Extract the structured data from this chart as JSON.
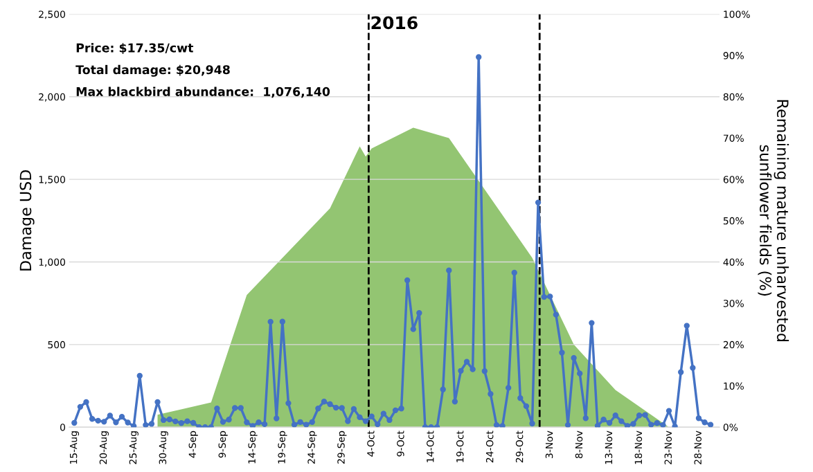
{
  "chart_data": {
    "type": "line",
    "title": "2016",
    "ylabel": "Damage USD",
    "y2label": "Remaining mature unharvested\nsunflower fields (%)",
    "annotations": [
      "Price: $17.35/cwt",
      "Total damage: $20,948",
      "Max blackbird abundance:  1,076,140"
    ],
    "x": [
      "2016-08-15",
      "2016-08-16",
      "2016-08-17",
      "2016-08-18",
      "2016-08-19",
      "2016-08-20",
      "2016-08-21",
      "2016-08-22",
      "2016-08-23",
      "2016-08-24",
      "2016-08-25",
      "2016-08-26",
      "2016-08-27",
      "2016-08-28",
      "2016-08-29",
      "2016-08-30",
      "2016-08-31",
      "2016-09-01",
      "2016-09-02",
      "2016-09-03",
      "2016-09-04",
      "2016-09-05",
      "2016-09-06",
      "2016-09-07",
      "2016-09-08",
      "2016-09-09",
      "2016-09-10",
      "2016-09-11",
      "2016-09-12",
      "2016-09-13",
      "2016-09-14",
      "2016-09-15",
      "2016-09-16",
      "2016-09-17",
      "2016-09-18",
      "2016-09-19",
      "2016-09-20",
      "2016-09-21",
      "2016-09-22",
      "2016-09-23",
      "2016-09-24",
      "2016-09-25",
      "2016-09-26",
      "2016-09-27",
      "2016-09-28",
      "2016-09-29",
      "2016-09-30",
      "2016-10-01",
      "2016-10-02",
      "2016-10-03",
      "2016-10-04",
      "2016-10-05",
      "2016-10-06",
      "2016-10-07",
      "2016-10-08",
      "2016-10-09",
      "2016-10-10",
      "2016-10-11",
      "2016-10-12",
      "2016-10-13",
      "2016-10-14",
      "2016-10-15",
      "2016-10-16",
      "2016-10-17",
      "2016-10-18",
      "2016-10-19",
      "2016-10-20",
      "2016-10-21",
      "2016-10-22",
      "2016-10-23",
      "2016-10-24",
      "2016-10-25",
      "2016-10-26",
      "2016-10-27",
      "2016-10-28",
      "2016-10-29",
      "2016-10-30",
      "2016-10-31",
      "2016-11-01",
      "2016-11-02",
      "2016-11-03",
      "2016-11-04",
      "2016-11-05",
      "2016-11-06",
      "2016-11-07",
      "2016-11-08",
      "2016-11-09",
      "2016-11-10",
      "2016-11-11",
      "2016-11-12",
      "2016-11-13",
      "2016-11-14",
      "2016-11-15",
      "2016-11-16",
      "2016-11-17",
      "2016-11-18",
      "2016-11-19",
      "2016-11-20",
      "2016-11-21",
      "2016-11-22",
      "2016-11-23",
      "2016-11-24",
      "2016-11-25",
      "2016-11-26",
      "2016-11-27",
      "2016-11-28",
      "2016-11-29",
      "2016-11-30"
    ],
    "series": [
      {
        "type": "area",
        "axis": "y2",
        "color": "#93c572",
        "x": [
          "2016-08-29",
          "2016-09-07",
          "2016-09-13",
          "2016-09-27",
          "2016-10-02",
          "2016-10-03",
          "2016-10-04",
          "2016-10-11",
          "2016-10-17",
          "2016-10-31",
          "2016-11-07",
          "2016-11-14",
          "2016-11-23"
        ],
        "values": [
          3,
          6,
          32,
          53,
          68,
          65.5,
          67.5,
          72.5,
          70,
          41,
          20,
          9,
          0
        ]
      },
      {
        "color": "#4472c4",
        "marker": "circle",
        "values": [
          26,
          123,
          152,
          50,
          39,
          33,
          70,
          29,
          63,
          28,
          6,
          311,
          13,
          20,
          152,
          43,
          47,
          35,
          25,
          36,
          26,
          0,
          0,
          0,
          113,
          32,
          46,
          116,
          116,
          29,
          7,
          29,
          18,
          638,
          53,
          639,
          145,
          15,
          31,
          15,
          31,
          113,
          155,
          139,
          118,
          116,
          36,
          110,
          60,
          36,
          65,
          17,
          82,
          43,
          102,
          113,
          889,
          593,
          691,
          0,
          0,
          0,
          228,
          949,
          155,
          341,
          396,
          350,
          2240,
          339,
          201,
          13,
          7,
          238,
          935,
          176,
          127,
          22,
          1360,
          788,
          791,
          681,
          451,
          13,
          419,
          325,
          54,
          631,
          8,
          46,
          26,
          71,
          36,
          8,
          20,
          71,
          74,
          15,
          25,
          13,
          99,
          4,
          333,
          614,
          359,
          54,
          29,
          15
        ]
      }
    ],
    "line_style": "solid",
    "grid": "y",
    "legend": false,
    "xlim": [
      "2016-08-14T03:00",
      "2016-12-01T12:00"
    ],
    "xticks": [
      {
        "value": "2016-08-15",
        "label": "15-Aug"
      },
      {
        "value": "2016-08-20",
        "label": "20-Aug"
      },
      {
        "value": "2016-08-25",
        "label": "25-Aug"
      },
      {
        "value": "2016-08-30",
        "label": "30-Aug"
      },
      {
        "value": "2016-09-04",
        "label": "4-Sep"
      },
      {
        "value": "2016-09-09",
        "label": "9-Sep"
      },
      {
        "value": "2016-09-14",
        "label": "14-Sep"
      },
      {
        "value": "2016-09-19",
        "label": "19-Sep"
      },
      {
        "value": "2016-09-24",
        "label": "24-Sep"
      },
      {
        "value": "2016-09-29",
        "label": "29-Sep"
      },
      {
        "value": "2016-10-04",
        "label": "4-Oct"
      },
      {
        "value": "2016-10-09",
        "label": "9-Oct"
      },
      {
        "value": "2016-10-14",
        "label": "14-Oct"
      },
      {
        "value": "2016-10-19",
        "label": "19-Oct"
      },
      {
        "value": "2016-10-24",
        "label": "24-Oct"
      },
      {
        "value": "2016-10-29",
        "label": "29-Oct"
      },
      {
        "value": "2016-11-03",
        "label": "3-Nov"
      },
      {
        "value": "2016-11-08",
        "label": "8-Nov"
      },
      {
        "value": "2016-11-13",
        "label": "13-Nov"
      },
      {
        "value": "2016-11-18",
        "label": "18-Nov"
      },
      {
        "value": "2016-11-23",
        "label": "23-Nov"
      },
      {
        "value": "2016-11-28",
        "label": "28-Nov"
      }
    ],
    "ylim": [
      0,
      2500
    ],
    "yticks": [
      0,
      500,
      {
        "value": 1000,
        "label": "1,000"
      },
      {
        "value": 1500,
        "label": "1,500"
      },
      {
        "value": 2000,
        "label": "2,000"
      },
      {
        "value": 2500,
        "label": "2,500"
      }
    ],
    "y2lim": [
      0,
      100
    ],
    "y2ticks": [
      {
        "value": 0,
        "label": "0%"
      },
      {
        "value": 10,
        "label": "10%"
      },
      {
        "value": 20,
        "label": "20%"
      },
      {
        "value": 30,
        "label": "30%"
      },
      {
        "value": 40,
        "label": "40%"
      },
      {
        "value": 50,
        "label": "50%"
      },
      {
        "value": 60,
        "label": "60%"
      },
      {
        "value": 70,
        "label": "70%"
      },
      {
        "value": 80,
        "label": "80%"
      },
      {
        "value": 90,
        "label": "90%"
      },
      {
        "value": 100,
        "label": "100%"
      }
    ],
    "ref_lines": [
      {
        "axis": "x",
        "value": "2016-10-03T12:00",
        "color": "#000000",
        "line_style": "dashed"
      },
      {
        "axis": "x",
        "value": "2016-11-01T06:00",
        "color": "#000000",
        "line_style": "dashed"
      }
    ]
  }
}
